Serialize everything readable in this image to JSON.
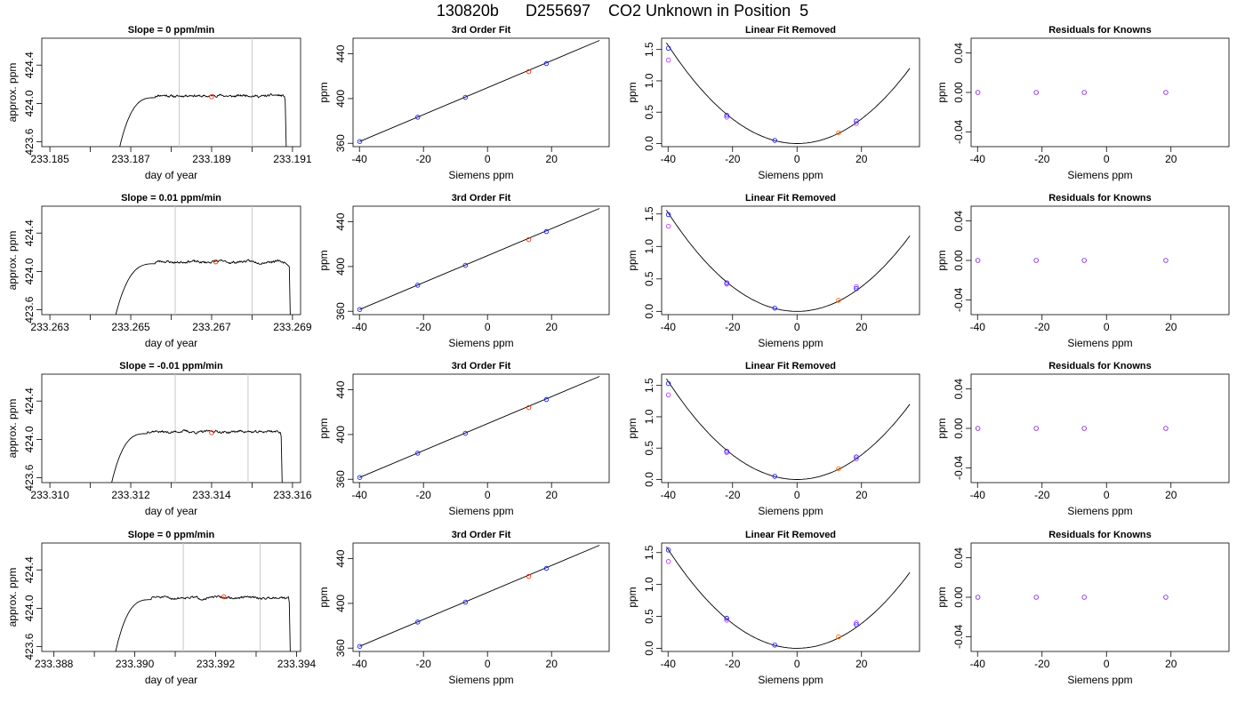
{
  "figure": {
    "title": "130820b      D255697    CO2 Unknown in Position  5"
  },
  "colors": {
    "trace": "#000000",
    "gridline": "#c8c8c8",
    "known_point": "#1f1fff",
    "residual_point": "#8a2be2",
    "measured_point": "#ff2a00",
    "alt_point": "#bf40ff",
    "unknown_point": "#ff6a00"
  },
  "panel_titles": {
    "fit": "3rd Order Fit",
    "linear_removed": "Linear Fit Removed",
    "residuals": "Residuals for Knowns"
  },
  "axis_labels": {
    "ts_x": "day of year",
    "ts_y": "approx. ppm",
    "fit_x": "Siemens ppm",
    "fit_y": "ppm",
    "lin_y": "ppm",
    "res_y": "ppm"
  },
  "chart_data": [
    {
      "type": "line",
      "panel": "timeseries",
      "row": 0,
      "title": "Slope =  0  ppm/min",
      "xlabel": "day of year",
      "ylabel": "approx. ppm",
      "xlim": [
        233.1848,
        233.1912
      ],
      "ylim": [
        423.55,
        424.68
      ],
      "xticks": [
        "233.185",
        "233.187",
        "233.189",
        "233.191"
      ],
      "xtick_values": [
        233.185,
        233.187,
        233.189,
        233.191
      ],
      "xminor": [
        233.186,
        233.188,
        233.19
      ],
      "yticks": [
        "423.6",
        "424.0",
        "424.4"
      ],
      "ytick_values": [
        423.6,
        424.0,
        424.4
      ],
      "vlines": [
        233.1882,
        233.19
      ],
      "trace": {
        "x_start": 233.1867,
        "x_plateau": 233.1876,
        "x_end": 233.1908,
        "x_drop": 233.19085,
        "level": 424.08,
        "seed": 11
      },
      "marker": {
        "x": 233.189,
        "y": 424.07
      }
    },
    {
      "type": "line",
      "panel": "timeseries",
      "row": 1,
      "title": "Slope =  0.01  ppm/min",
      "xlabel": "day of year",
      "ylabel": "approx. ppm",
      "xlim": [
        233.2628,
        233.2692
      ],
      "ylim": [
        423.55,
        424.68
      ],
      "xticks": [
        "233.263",
        "233.265",
        "233.267",
        "233.269"
      ],
      "xtick_values": [
        233.263,
        233.265,
        233.267,
        233.269
      ],
      "xminor": [
        233.264,
        233.266,
        233.268
      ],
      "yticks": [
        "423.6",
        "424.0",
        "424.4"
      ],
      "ytick_values": [
        423.6,
        424.0,
        424.4
      ],
      "vlines": [
        233.2661,
        233.268
      ],
      "trace": {
        "x_start": 233.2646,
        "x_plateau": 233.2656,
        "x_end": 233.2688,
        "x_drop": 233.26895,
        "level": 424.1,
        "seed": 23
      },
      "marker": {
        "x": 233.2671,
        "y": 424.1
      }
    },
    {
      "type": "line",
      "panel": "timeseries",
      "row": 2,
      "title": "Slope =  -0.01  ppm/min",
      "xlabel": "day of year",
      "ylabel": "approx. ppm",
      "xlim": [
        233.3098,
        233.3162
      ],
      "ylim": [
        423.55,
        424.68
      ],
      "xticks": [
        "233.310",
        "233.312",
        "233.314",
        "233.316"
      ],
      "xtick_values": [
        233.31,
        233.312,
        233.314,
        233.316
      ],
      "xminor": [
        233.311,
        233.313,
        233.315
      ],
      "yticks": [
        "423.6",
        "424.0",
        "424.4"
      ],
      "ytick_values": [
        423.6,
        424.0,
        424.4
      ],
      "vlines": [
        233.3131,
        233.3149
      ],
      "trace": {
        "x_start": 233.3115,
        "x_plateau": 233.3124,
        "x_end": 233.3157,
        "x_drop": 233.31575,
        "level": 424.08,
        "seed": 37
      },
      "marker": {
        "x": 233.314,
        "y": 424.07
      }
    },
    {
      "type": "line",
      "panel": "timeseries",
      "row": 3,
      "title": "Slope =  0  ppm/min",
      "xlabel": "day of year",
      "ylabel": "approx. ppm",
      "xlim": [
        233.3877,
        233.3941
      ],
      "ylim": [
        423.55,
        424.68
      ],
      "xticks": [
        "233.388",
        "233.390",
        "233.392",
        "233.394"
      ],
      "xtick_values": [
        233.388,
        233.39,
        233.392,
        233.394
      ],
      "xminor": [
        233.389,
        233.391,
        233.393
      ],
      "yticks": [
        "423.6",
        "424.0",
        "424.4"
      ],
      "ytick_values": [
        423.6,
        424.0,
        424.4
      ],
      "vlines": [
        233.3912,
        233.3931
      ],
      "trace": {
        "x_start": 233.3895,
        "x_plateau": 233.3904,
        "x_end": 233.3938,
        "x_drop": 233.39385,
        "level": 424.11,
        "seed": 51
      },
      "marker": {
        "x": 233.3922,
        "y": 424.12
      }
    },
    {
      "type": "scatter",
      "panel": "fit",
      "row": 0,
      "title": "3rd Order Fit",
      "xlabel": "Siemens ppm",
      "ylabel": "ppm",
      "xlim": [
        -42,
        38
      ],
      "ylim": [
        357,
        454
      ],
      "xticks": [
        "-40",
        "-20",
        "0",
        "20"
      ],
      "xtick_values": [
        -40,
        -20,
        0,
        20
      ],
      "yticks": [
        "360",
        "400",
        "440"
      ],
      "ytick_values": [
        360,
        400,
        440
      ],
      "line": {
        "x": [
          -40,
          35
        ],
        "y": [
          361.5,
          452.0
        ]
      },
      "knowns": {
        "x": [
          -39.9,
          -21.8,
          -6.9,
          18.4
        ],
        "y": [
          361.6,
          383.3,
          401.1,
          431.3
        ]
      },
      "unknown": {
        "x": [
          12.9
        ],
        "y": [
          424.1
        ]
      }
    },
    {
      "type": "scatter",
      "panel": "fit",
      "row": 1,
      "title": "3rd Order Fit",
      "xlabel": "Siemens ppm",
      "ylabel": "ppm",
      "xlim": [
        -42,
        38
      ],
      "ylim": [
        357,
        454
      ],
      "xticks": [
        "-40",
        "-20",
        "0",
        "20"
      ],
      "xtick_values": [
        -40,
        -20,
        0,
        20
      ],
      "yticks": [
        "360",
        "400",
        "440"
      ],
      "ytick_values": [
        360,
        400,
        440
      ],
      "line": {
        "x": [
          -40,
          35
        ],
        "y": [
          361.5,
          452.0
        ]
      },
      "knowns": {
        "x": [
          -39.9,
          -21.8,
          -6.9,
          18.4
        ],
        "y": [
          361.6,
          383.3,
          401.1,
          431.3
        ]
      },
      "unknown": {
        "x": [
          12.9
        ],
        "y": [
          424.1
        ]
      }
    },
    {
      "type": "scatter",
      "panel": "fit",
      "row": 2,
      "title": "3rd Order Fit",
      "xlabel": "Siemens ppm",
      "ylabel": "ppm",
      "xlim": [
        -42,
        38
      ],
      "ylim": [
        357,
        454
      ],
      "xticks": [
        "-40",
        "-20",
        "0",
        "20"
      ],
      "xtick_values": [
        -40,
        -20,
        0,
        20
      ],
      "yticks": [
        "360",
        "400",
        "440"
      ],
      "ytick_values": [
        360,
        400,
        440
      ],
      "line": {
        "x": [
          -40,
          35
        ],
        "y": [
          361.5,
          452.0
        ]
      },
      "knowns": {
        "x": [
          -39.9,
          -21.8,
          -6.9,
          18.4
        ],
        "y": [
          361.6,
          383.3,
          401.1,
          431.3
        ]
      },
      "unknown": {
        "x": [
          12.9
        ],
        "y": [
          424.1
        ]
      }
    },
    {
      "type": "scatter",
      "panel": "fit",
      "row": 3,
      "title": "3rd Order Fit",
      "xlabel": "Siemens ppm",
      "ylabel": "ppm",
      "xlim": [
        -42,
        38
      ],
      "ylim": [
        357,
        454
      ],
      "xticks": [
        "-40",
        "-20",
        "0",
        "20"
      ],
      "xtick_values": [
        -40,
        -20,
        0,
        20
      ],
      "yticks": [
        "360",
        "400",
        "440"
      ],
      "ytick_values": [
        360,
        400,
        440
      ],
      "line": {
        "x": [
          -40,
          35
        ],
        "y": [
          361.5,
          452.0
        ]
      },
      "knowns": {
        "x": [
          -39.9,
          -21.8,
          -6.9,
          18.4
        ],
        "y": [
          361.6,
          383.3,
          401.1,
          431.3
        ]
      },
      "unknown": {
        "x": [
          12.9
        ],
        "y": [
          424.1
        ]
      }
    },
    {
      "type": "scatter",
      "panel": "linear_removed",
      "row": 0,
      "title": "Linear Fit Removed",
      "xlabel": "Siemens ppm",
      "ylabel": "ppm",
      "xlim": [
        -42,
        38
      ],
      "ylim": [
        -0.05,
        1.68
      ],
      "xticks": [
        "-40",
        "-20",
        "0",
        "20"
      ],
      "xtick_values": [
        -40,
        -20,
        0,
        20
      ],
      "yticks": [
        "0.0",
        "0.5",
        "1.0",
        "1.5"
      ],
      "ytick_values": [
        0,
        0.5,
        1.0,
        1.5
      ],
      "curve": {
        "coef": 0.00098,
        "x_from": -40.5,
        "x_to": 35
      },
      "knowns": {
        "x": [
          -39.9,
          -21.8,
          -6.9,
          18.4
        ],
        "y": [
          1.52,
          0.45,
          0.05,
          0.36
        ]
      },
      "alt": {
        "x": [
          -39.9,
          -21.8,
          18.4
        ],
        "y": [
          1.33,
          0.42,
          0.32
        ]
      },
      "unknown": {
        "x": [
          12.9
        ],
        "y": [
          0.17
        ]
      }
    },
    {
      "type": "scatter",
      "panel": "linear_removed",
      "row": 1,
      "title": "Linear Fit Removed",
      "xlabel": "Siemens ppm",
      "ylabel": "ppm",
      "xlim": [
        -42,
        38
      ],
      "ylim": [
        -0.05,
        1.62
      ],
      "xticks": [
        "-40",
        "-20",
        "0",
        "20"
      ],
      "xtick_values": [
        -40,
        -20,
        0,
        20
      ],
      "yticks": [
        "0.0",
        "0.5",
        "1.0",
        "1.5"
      ],
      "ytick_values": [
        0,
        0.5,
        1.0,
        1.5
      ],
      "curve": {
        "coef": 0.00095,
        "x_from": -40.5,
        "x_to": 35
      },
      "knowns": {
        "x": [
          -39.9,
          -21.8,
          -6.9,
          18.4
        ],
        "y": [
          1.49,
          0.44,
          0.05,
          0.35
        ]
      },
      "alt": {
        "x": [
          -39.9,
          -21.8,
          18.4
        ],
        "y": [
          1.31,
          0.42,
          0.38
        ]
      },
      "unknown": {
        "x": [
          12.9
        ],
        "y": [
          0.17
        ]
      }
    },
    {
      "type": "scatter",
      "panel": "linear_removed",
      "row": 2,
      "title": "Linear Fit Removed",
      "xlabel": "Siemens ppm",
      "ylabel": "ppm",
      "xlim": [
        -42,
        38
      ],
      "ylim": [
        -0.05,
        1.68
      ],
      "xticks": [
        "-40",
        "-20",
        "0",
        "20"
      ],
      "xtick_values": [
        -40,
        -20,
        0,
        20
      ],
      "yticks": [
        "0.0",
        "0.5",
        "1.0",
        "1.5"
      ],
      "ytick_values": [
        0,
        0.5,
        1.0,
        1.5
      ],
      "curve": {
        "coef": 0.00098,
        "x_from": -40.5,
        "x_to": 35
      },
      "knowns": {
        "x": [
          -39.9,
          -21.8,
          -6.9,
          18.4
        ],
        "y": [
          1.53,
          0.45,
          0.05,
          0.36
        ]
      },
      "alt": {
        "x": [
          -39.9,
          -21.8,
          18.4
        ],
        "y": [
          1.35,
          0.43,
          0.33
        ]
      },
      "unknown": {
        "x": [
          12.9
        ],
        "y": [
          0.17
        ]
      }
    },
    {
      "type": "scatter",
      "panel": "linear_removed",
      "row": 3,
      "title": "Linear Fit Removed",
      "xlabel": "Siemens ppm",
      "ylabel": "ppm",
      "xlim": [
        -42,
        38
      ],
      "ylim": [
        -0.05,
        1.65
      ],
      "xticks": [
        "-40",
        "-20",
        "0",
        "20"
      ],
      "xtick_values": [
        -40,
        -20,
        0,
        20
      ],
      "yticks": [
        "0.0",
        "0.5",
        "1.0",
        "1.5"
      ],
      "ytick_values": [
        0,
        0.5,
        1.0,
        1.5
      ],
      "curve": {
        "coef": 0.00097,
        "x_from": -40.5,
        "x_to": 35
      },
      "knowns": {
        "x": [
          -39.9,
          -21.8,
          -6.9,
          18.4
        ],
        "y": [
          1.54,
          0.47,
          0.05,
          0.37
        ]
      },
      "alt": {
        "x": [
          -39.9,
          -21.8,
          18.4
        ],
        "y": [
          1.36,
          0.44,
          0.4
        ]
      },
      "unknown": {
        "x": [
          12.9
        ],
        "y": [
          0.18
        ]
      }
    },
    {
      "type": "scatter",
      "panel": "residuals",
      "row": 0,
      "title": "Residuals for Knowns",
      "xlabel": "Siemens ppm",
      "ylabel": "ppm",
      "xlim": [
        -42,
        38
      ],
      "ylim": [
        -0.055,
        0.055
      ],
      "xticks": [
        "-40",
        "-20",
        "0",
        "20"
      ],
      "xtick_values": [
        -40,
        -20,
        0,
        20
      ],
      "yticks": [
        "-0.04",
        "0.00",
        "0.04"
      ],
      "ytick_values": [
        -0.04,
        0,
        0.04
      ],
      "points": {
        "x": [
          -39.9,
          -21.8,
          -6.9,
          18.4
        ],
        "y": [
          0,
          0,
          0,
          0
        ]
      }
    },
    {
      "type": "scatter",
      "panel": "residuals",
      "row": 1,
      "title": "Residuals for Knowns",
      "xlabel": "Siemens ppm",
      "ylabel": "ppm",
      "xlim": [
        -42,
        38
      ],
      "ylim": [
        -0.055,
        0.055
      ],
      "xticks": [
        "-40",
        "-20",
        "0",
        "20"
      ],
      "xtick_values": [
        -40,
        -20,
        0,
        20
      ],
      "yticks": [
        "-0.04",
        "0.00",
        "0.04"
      ],
      "ytick_values": [
        -0.04,
        0,
        0.04
      ],
      "points": {
        "x": [
          -39.9,
          -21.8,
          -6.9,
          18.4
        ],
        "y": [
          0,
          0,
          0,
          0
        ]
      }
    },
    {
      "type": "scatter",
      "panel": "residuals",
      "row": 2,
      "title": "Residuals for Knowns",
      "xlabel": "Siemens ppm",
      "ylabel": "ppm",
      "xlim": [
        -42,
        38
      ],
      "ylim": [
        -0.055,
        0.055
      ],
      "xticks": [
        "-40",
        "-20",
        "0",
        "20"
      ],
      "xtick_values": [
        -40,
        -20,
        0,
        20
      ],
      "yticks": [
        "-0.04",
        "0.00",
        "0.04"
      ],
      "ytick_values": [
        -0.04,
        0,
        0.04
      ],
      "points": {
        "x": [
          -39.9,
          -21.8,
          -6.9,
          18.4
        ],
        "y": [
          0,
          0,
          0,
          0
        ]
      }
    },
    {
      "type": "scatter",
      "panel": "residuals",
      "row": 3,
      "title": "Residuals for Knowns",
      "xlabel": "Siemens ppm",
      "ylabel": "ppm",
      "xlim": [
        -42,
        38
      ],
      "ylim": [
        -0.055,
        0.055
      ],
      "xticks": [
        "-40",
        "-20",
        "0",
        "20"
      ],
      "xtick_values": [
        -40,
        -20,
        0,
        20
      ],
      "yticks": [
        "-0.04",
        "0.00",
        "0.04"
      ],
      "ytick_values": [
        -0.04,
        0,
        0.04
      ],
      "points": {
        "x": [
          -39.9,
          -21.8,
          -6.9,
          18.4
        ],
        "y": [
          0,
          0,
          0,
          0
        ]
      }
    }
  ]
}
